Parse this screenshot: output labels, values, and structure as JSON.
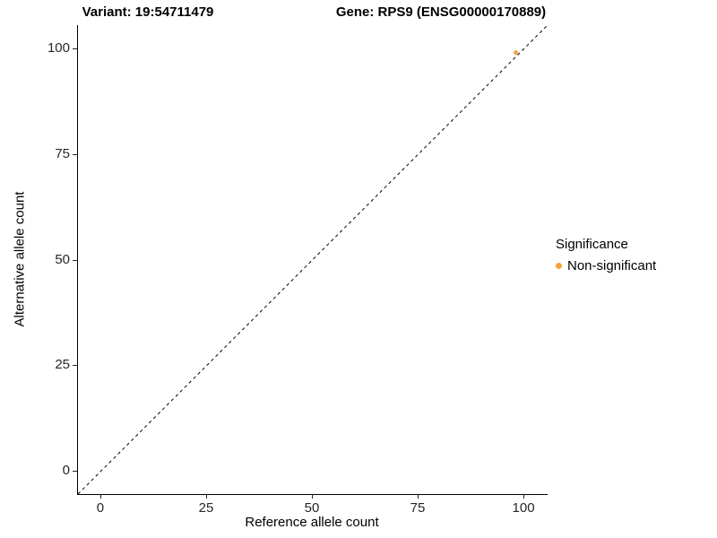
{
  "chart_data": {
    "type": "scatter",
    "title_left": "Variant: 19:54711479",
    "title_right": "Gene: RPS9 (ENSG00000170889)",
    "xlabel": "Reference allele count",
    "ylabel": "Alternative allele count",
    "x_ticks": [
      0,
      25,
      50,
      75,
      100
    ],
    "y_ticks": [
      0,
      25,
      50,
      75,
      100
    ],
    "axis_domain": [
      -5.5,
      105.5
    ],
    "grid": "off",
    "reference_line": {
      "type": "identity",
      "style": "dashed",
      "color": "#000000"
    },
    "series": [
      {
        "name": "Non-significant",
        "color": "#F5A43C",
        "points": [
          {
            "x": 98,
            "y": 99
          }
        ]
      }
    ],
    "legend": {
      "position": "right",
      "title": "Significance",
      "entries": [
        {
          "label": "Non-significant",
          "color": "#F5A43C"
        }
      ]
    }
  }
}
